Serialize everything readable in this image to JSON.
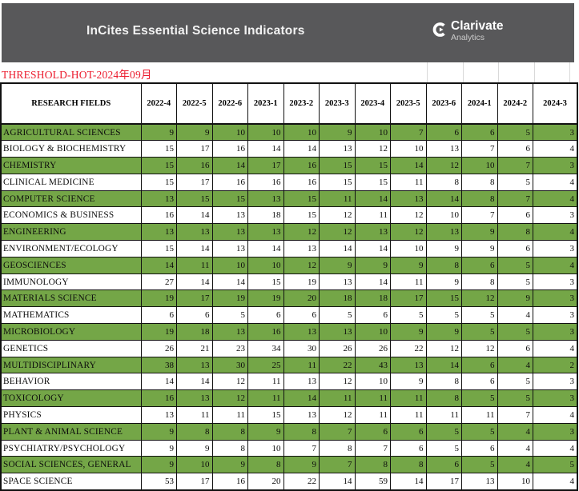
{
  "header": {
    "title": "InCites Essential Science Indicators",
    "brand": {
      "name": "Clarivate",
      "subtitle": "Analytics"
    }
  },
  "banner": {
    "label": "THRESHOLD-HOT-2024年09月"
  },
  "colors": {
    "header_bar": "#58585a",
    "banner_red": "#ec1c2e",
    "row_green": "#74a647",
    "grid_black": "#111111"
  },
  "table": {
    "columns": [
      "RESEARCH FIELDS",
      "2022-4",
      "2022-5",
      "2022-6",
      "2023-1",
      "2023-2",
      "2023-3",
      "2023-4",
      "2023-5",
      "2023-6",
      "2024-1",
      "2024-2",
      "2024-3"
    ],
    "rows": [
      {
        "field": "AGRICULTURAL SCIENCES",
        "highlighted": true,
        "values": [
          9,
          9,
          10,
          10,
          10,
          9,
          10,
          7,
          6,
          6,
          5,
          3
        ]
      },
      {
        "field": "BIOLOGY & BIOCHEMISTRY",
        "highlighted": false,
        "values": [
          15,
          17,
          16,
          14,
          14,
          13,
          12,
          10,
          13,
          7,
          6,
          4
        ]
      },
      {
        "field": "CHEMISTRY",
        "highlighted": true,
        "values": [
          15,
          16,
          14,
          17,
          16,
          15,
          15,
          14,
          12,
          10,
          7,
          3
        ]
      },
      {
        "field": "CLINICAL MEDICINE",
        "highlighted": false,
        "values": [
          15,
          17,
          16,
          16,
          16,
          15,
          15,
          11,
          8,
          8,
          5,
          4
        ]
      },
      {
        "field": "COMPUTER SCIENCE",
        "highlighted": true,
        "values": [
          13,
          15,
          15,
          13,
          15,
          11,
          14,
          13,
          14,
          8,
          7,
          4
        ]
      },
      {
        "field": "ECONOMICS & BUSINESS",
        "highlighted": false,
        "values": [
          16,
          14,
          13,
          18,
          15,
          12,
          11,
          12,
          10,
          7,
          6,
          3
        ]
      },
      {
        "field": "ENGINEERING",
        "highlighted": true,
        "values": [
          13,
          13,
          13,
          13,
          12,
          12,
          13,
          12,
          13,
          9,
          8,
          4
        ]
      },
      {
        "field": "ENVIRONMENT/ECOLOGY",
        "highlighted": false,
        "values": [
          15,
          14,
          13,
          14,
          13,
          14,
          14,
          10,
          9,
          9,
          6,
          3
        ]
      },
      {
        "field": "GEOSCIENCES",
        "highlighted": true,
        "values": [
          14,
          11,
          10,
          10,
          12,
          9,
          9,
          9,
          8,
          6,
          5,
          4
        ]
      },
      {
        "field": "IMMUNOLOGY",
        "highlighted": false,
        "values": [
          27,
          14,
          14,
          15,
          19,
          13,
          14,
          11,
          9,
          8,
          5,
          3
        ]
      },
      {
        "field": "MATERIALS SCIENCE",
        "highlighted": true,
        "values": [
          19,
          17,
          19,
          19,
          20,
          18,
          18,
          17,
          15,
          12,
          9,
          3
        ]
      },
      {
        "field": "MATHEMATICS",
        "highlighted": false,
        "values": [
          6,
          6,
          5,
          6,
          6,
          5,
          6,
          5,
          5,
          5,
          4,
          3
        ]
      },
      {
        "field": "MICROBIOLOGY",
        "highlighted": true,
        "values": [
          19,
          18,
          13,
          16,
          13,
          13,
          10,
          9,
          9,
          5,
          5,
          3
        ]
      },
      {
        "field": "GENETICS",
        "highlighted": false,
        "values": [
          26,
          21,
          23,
          34,
          30,
          26,
          26,
          22,
          12,
          12,
          6,
          4
        ]
      },
      {
        "field": "MULTIDISCIPLINARY",
        "highlighted": true,
        "values": [
          38,
          13,
          30,
          25,
          11,
          22,
          43,
          13,
          14,
          6,
          4,
          2
        ]
      },
      {
        "field": "BEHAVIOR",
        "highlighted": false,
        "values": [
          14,
          14,
          12,
          11,
          13,
          12,
          10,
          9,
          8,
          6,
          5,
          3
        ]
      },
      {
        "field": "TOXICOLOGY",
        "highlighted": true,
        "values": [
          16,
          13,
          12,
          11,
          14,
          11,
          11,
          11,
          8,
          5,
          5,
          3
        ]
      },
      {
        "field": "PHYSICS",
        "highlighted": false,
        "values": [
          13,
          11,
          11,
          15,
          13,
          12,
          11,
          11,
          11,
          11,
          7,
          4
        ]
      },
      {
        "field": "PLANT & ANIMAL SCIENCE",
        "highlighted": true,
        "values": [
          9,
          8,
          8,
          9,
          8,
          7,
          6,
          6,
          5,
          5,
          4,
          3
        ]
      },
      {
        "field": "PSYCHIATRY/PSYCHOLOGY",
        "highlighted": false,
        "values": [
          9,
          9,
          8,
          10,
          7,
          8,
          7,
          6,
          5,
          6,
          4,
          4
        ]
      },
      {
        "field": "SOCIAL SCIENCES, GENERAL",
        "highlighted": true,
        "values": [
          9,
          10,
          9,
          8,
          9,
          7,
          8,
          8,
          6,
          5,
          4,
          5
        ]
      },
      {
        "field": "SPACE SCIENCE",
        "highlighted": false,
        "values": [
          53,
          17,
          16,
          20,
          22,
          14,
          59,
          14,
          17,
          13,
          10,
          4
        ]
      }
    ]
  }
}
